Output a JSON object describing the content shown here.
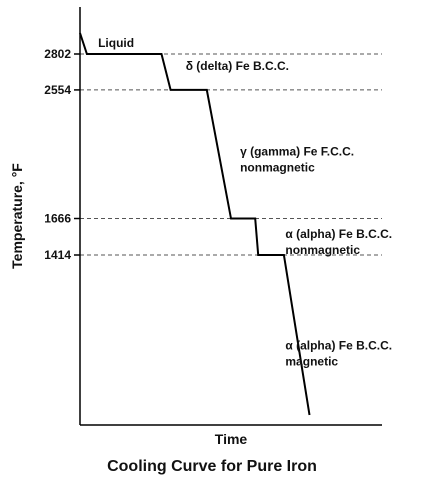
{
  "chart_data": {
    "type": "line",
    "title": "Cooling Curve for Pure Iron",
    "xlabel": "Time",
    "ylabel": "Temperature, °F",
    "ylim": [
      0,
      3000
    ],
    "yticks": [
      2802,
      2554,
      1666,
      1414
    ],
    "grid": "dashed reference lines at tick values",
    "series": [
      {
        "x": [
          0.0,
          0.023,
          0.27,
          0.3,
          0.42,
          0.5,
          0.58,
          0.59,
          0.675,
          0.76
        ],
        "y": [
          3000,
          2802,
          2802,
          2554,
          2554,
          1666,
          1666,
          1414,
          1414,
          0
        ]
      }
    ],
    "annotations": [
      {
        "lines": [
          "Liquid"
        ],
        "x": 0.06,
        "y": 2850
      },
      {
        "lines": [
          "δ (delta) Fe B.C.C."
        ],
        "x": 0.35,
        "y": 2690
      },
      {
        "lines": [
          "γ (gamma) Fe F.C.C.",
          "nonmagnetic"
        ],
        "x": 0.53,
        "y": 2100
      },
      {
        "lines": [
          "α (alpha) Fe B.C.C.",
          "nonmagnetic"
        ],
        "x": 0.68,
        "y": 1530
      },
      {
        "lines": [
          "α (alpha) Fe B.C.C.",
          "magnetic"
        ],
        "x": 0.68,
        "y": 760
      }
    ],
    "colors": {
      "line": "#000000",
      "reference": "#555555"
    }
  }
}
